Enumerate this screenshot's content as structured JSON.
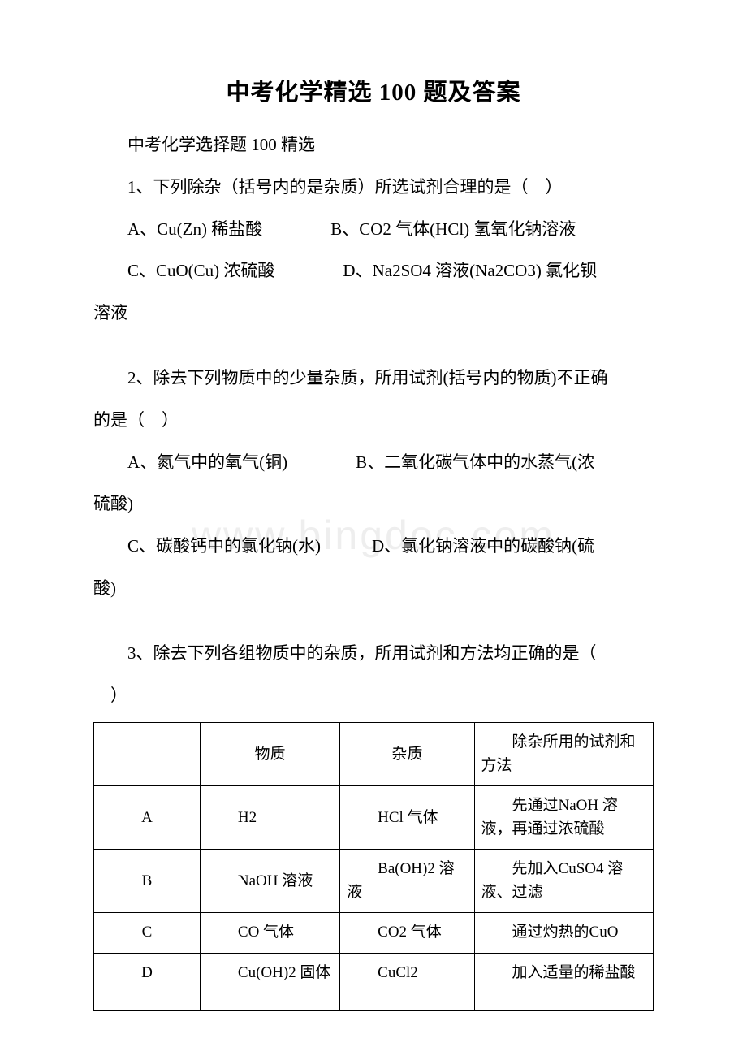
{
  "title": "中考化学精选 100 题及答案",
  "subtitle": "中考化学选择题 100 精选",
  "q1": {
    "stem": "1、下列除杂（括号内的是杂质）所选试剂合理的是（　）",
    "line1": "A、Cu(Zn)  稀盐酸　　　　B、CO2 气体(HCl)  氢氧化钠溶液",
    "line2": "C、CuO(Cu) 浓硫酸　　　　D、Na2SO4 溶液(Na2CO3)  氯化钡",
    "wrap": "溶液"
  },
  "q2": {
    "stem": "2、除去下列物质中的少量杂质，所用试剂(括号内的物质)不正确",
    "stem_wrap": "的是（　）",
    "line1": "A、氮气中的氧气(铜)　　　　B、二氧化碳气体中的水蒸气(浓",
    "wrap1": "硫酸)",
    "line2": "C、碳酸钙中的氯化钠(水)　　　D、氯化钠溶液中的碳酸钠(硫",
    "wrap2": "酸)"
  },
  "q3": {
    "stem": "3、除去下列各组物质中的杂质，所用试剂和方法均正确的是（",
    "stem_wrap": "　）",
    "table": {
      "headers": [
        "",
        "物质",
        "杂质",
        "除杂所用的试剂和方法"
      ],
      "rows": [
        [
          "A",
          "H2",
          "HCl 气体",
          "先通过NaOH 溶液，再通过浓硫酸"
        ],
        [
          "B",
          "NaOH 溶液",
          "Ba(OH)2 溶液",
          "先加入CuSO4 溶液、过滤"
        ],
        [
          "C",
          "CO 气体",
          "CO2 气体",
          "通过灼热的CuO"
        ],
        [
          "D",
          "Cu(OH)2 固体",
          "CuCl2",
          "加入适量的稀盐酸"
        ]
      ]
    }
  }
}
